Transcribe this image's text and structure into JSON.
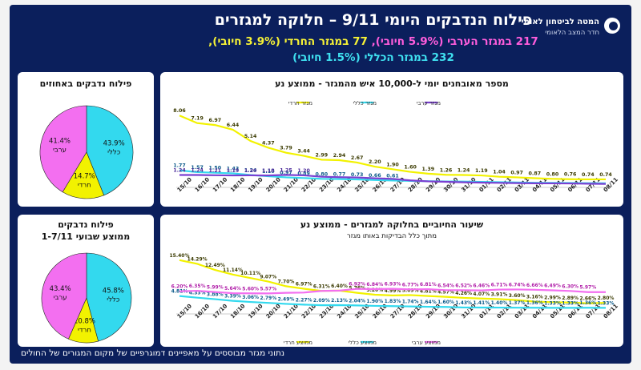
{
  "header": {
    "title": "פילוח הנדבקים היומי 9/11 – חלוקה למגזרים",
    "line2_a": "217 במגזר הערבי",
    "line2_b": " (5.9% חיובי), ",
    "line2_c": "77 במגזר החרדי (3.9% חיובי),",
    "line3": "232 במגזר הכללי (1.5% חיובי)"
  },
  "logo": {
    "line1": "המטה לביטחון לאומי",
    "line2": "חדר המצב הלאומי"
  },
  "footer": "נתוני מגזר מבוססים על מאפיינים דמוגרפיים של מקום המגורים של החולים",
  "colors": {
    "background": "#0b1f5c",
    "yellow": "#f2f200",
    "cyan": "#33d9ee",
    "purple": "#7a3fd1",
    "pink": "#f36ff0"
  },
  "chart_data": [
    {
      "type": "pie",
      "title": "פילוח נדבקים באחוזים",
      "slices": [
        {
          "label": "כללי",
          "value": 43.9,
          "color": "#33d9ee"
        },
        {
          "label": "חרדי",
          "value": 14.7,
          "color": "#f2f200"
        },
        {
          "label": "ערבי",
          "value": 41.4,
          "color": "#f36ff0"
        }
      ]
    },
    {
      "type": "pie",
      "title_line1": "פילוח נדבקים",
      "title_line2": "ממוצע שבועי 1-7/11",
      "slices": [
        {
          "label": "כללי",
          "value": 45.8,
          "color": "#33d9ee"
        },
        {
          "label": "חרדי",
          "value": 10.8,
          "color": "#f2f200"
        },
        {
          "label": "ערבי",
          "value": 43.4,
          "color": "#f36ff0"
        }
      ]
    },
    {
      "type": "line",
      "title": "מספר מאובחנים יומי ל-10,000 איש מהמגזר - ממוצע נע",
      "categories": [
        "15/10",
        "16/10",
        "17/10",
        "18/10",
        "19/10",
        "20/10",
        "21/10",
        "22/10",
        "23/10",
        "24/10",
        "25/10",
        "26/10",
        "27/10",
        "28/10",
        "29/10",
        "30/10",
        "31/10",
        "01/11",
        "02/11",
        "03/11",
        "04/11",
        "05/11",
        "06/11",
        "07/11",
        "08/11"
      ],
      "series": [
        {
          "name": "מגזר חרדי",
          "color": "#f2f200",
          "values": [
            8.06,
            7.19,
            6.97,
            6.44,
            5.14,
            4.37,
            3.79,
            3.44,
            2.99,
            2.94,
            2.67,
            2.2,
            1.9,
            1.6,
            1.39,
            1.26,
            1.24,
            1.19,
            1.04,
            0.97,
            0.87,
            0.8,
            0.76,
            0.74,
            0.74
          ],
          "labels": [
            "8.06",
            "7.19",
            "6.97",
            "6.44",
            "5.14",
            "4.37",
            "3.79",
            "3.44",
            "2.99",
            "2.94",
            "2.67",
            "2.20",
            "1.90",
            "1.60",
            "1.39",
            "1.26",
            "1.24",
            "1.19",
            "1.04",
            "0.97",
            "0.87",
            "0.80",
            "0.76",
            "0.74",
            "0.74"
          ]
        },
        {
          "name": "מגזר כללי",
          "color": "#33d9ee",
          "values": [
            1.77,
            1.57,
            1.5,
            1.43,
            1.24,
            1.1,
            0.97,
            0.89,
            0.8,
            0.77,
            0.73,
            0.66,
            0.61,
            0.56,
            0.53,
            0.5,
            0.48,
            0.45,
            0.42,
            0.38,
            0.35,
            0.33,
            0.32,
            0.3,
            0.29
          ],
          "labels": [
            "1.77",
            "1.57",
            "1.50",
            "1.43",
            "1.24",
            "1.10",
            "0.97",
            "0.89",
            "0.80",
            "0.77",
            "0.73",
            "0.66",
            "0.61",
            "",
            "",
            "",
            "",
            "",
            "",
            "",
            "",
            "",
            "",
            "",
            ""
          ]
        },
        {
          "name": "מגזר ערבי",
          "color": "#7a3fd1",
          "values": [
            1.24,
            1.24,
            1.21,
            1.19,
            1.2,
            1.18,
            1.25,
            1.2,
            1.04,
            0.99,
            0.95,
            0.86,
            0.79,
            0.62,
            0.51,
            0.46,
            0.4,
            0.37,
            0.34,
            0.31,
            0.29,
            0.28,
            0.27,
            0.24,
            0.22
          ],
          "labels": [
            "1.24",
            "1.24",
            "1.21",
            "1.19",
            "1.20",
            "1.18",
            "1.25",
            "1.20",
            "",
            "",
            "",
            "",
            "",
            "",
            "",
            "",
            "",
            "",
            "",
            "",
            "",
            "",
            "",
            "",
            ""
          ]
        }
      ],
      "ylim": [
        0,
        9
      ]
    },
    {
      "type": "line",
      "title": "שיעור החיוביים בחלוקה למגזרים - ממוצע נע",
      "subtitle": "מתוך כלל הבדיקות באותו מגזר",
      "categories": [
        "15/10",
        "16/10",
        "17/10",
        "18/10",
        "19/10",
        "20/10",
        "21/10",
        "22/10",
        "23/10",
        "24/10",
        "25/10",
        "26/10",
        "27/10",
        "28/10",
        "29/10",
        "30/10",
        "31/10",
        "01/11",
        "02/11",
        "03/11",
        "04/11",
        "05/11",
        "06/11",
        "07/11",
        "08/11"
      ],
      "series": [
        {
          "name": "ממוצע חרדי",
          "color": "#f2f200",
          "values": [
            15.4,
            14.29,
            12.49,
            11.14,
            10.11,
            9.07,
            7.7,
            6.97,
            6.31,
            6.4,
            5.76,
            5.2,
            4.99,
            5.09,
            4.81,
            4.57,
            4.26,
            4.07,
            3.91,
            3.6,
            3.16,
            2.99,
            2.89,
            2.66,
            2.8
          ],
          "labels": [
            "15.40%",
            "14.29%",
            "12.49%",
            "11.14%",
            "10.11%",
            "9.07%",
            "7.70%",
            "6.97%",
            "6.31%",
            "6.40%",
            "5.76%",
            "5.20%",
            "4.99%",
            "5.09%",
            "4.81%",
            "4.57%",
            "4.26%",
            "4.07%",
            "3.91%",
            "3.60%",
            "3.16%",
            "2.99%",
            "2.89%",
            "2.66%",
            "2.80%"
          ]
        },
        {
          "name": "ממוצע כללי",
          "color": "#33d9ee",
          "values": [
            4.81,
            4.33,
            3.88,
            3.39,
            3.06,
            2.79,
            2.49,
            2.27,
            2.09,
            2.13,
            2.04,
            1.9,
            1.83,
            1.74,
            1.64,
            1.6,
            1.43,
            1.41,
            1.4,
            1.37,
            1.36,
            1.33,
            1.33,
            1.36,
            1.33
          ],
          "labels": [
            "4.81%",
            "4.33%",
            "3.88%",
            "3.39%",
            "3.06%",
            "2.79%",
            "2.49%",
            "2.27%",
            "2.09%",
            "2.13%",
            "2.04%",
            "1.90%",
            "1.83%",
            "1.74%",
            "1.64%",
            "1.60%",
            "1.43%",
            "1.41%",
            "1.40%",
            "1.37%",
            "1.36%",
            "1.33%",
            "1.33%",
            "1.36%",
            "1.33%"
          ]
        },
        {
          "name": "ממוצע ערבי",
          "color": "#f36ff0",
          "values": [
            6.2,
            6.35,
            5.99,
            5.64,
            5.6,
            5.57,
            5.75,
            5.83,
            6.31,
            6.4,
            6.92,
            6.84,
            6.93,
            6.77,
            6.81,
            6.54,
            6.52,
            6.46,
            6.71,
            6.74,
            6.66,
            6.49,
            6.3,
            5.97,
            5.97
          ],
          "labels": [
            "6.20%",
            "6.35%",
            "5.99%",
            "5.64%",
            "5.60%",
            "5.57%",
            "",
            "",
            "",
            "",
            "6.92%",
            "6.84%",
            "6.93%",
            "6.77%",
            "6.81%",
            "6.54%",
            "6.52%",
            "6.46%",
            "6.71%",
            "6.74%",
            "6.66%",
            "6.49%",
            "6.30%",
            "5.97%",
            ""
          ]
        }
      ],
      "ylim": [
        0,
        17
      ]
    }
  ]
}
